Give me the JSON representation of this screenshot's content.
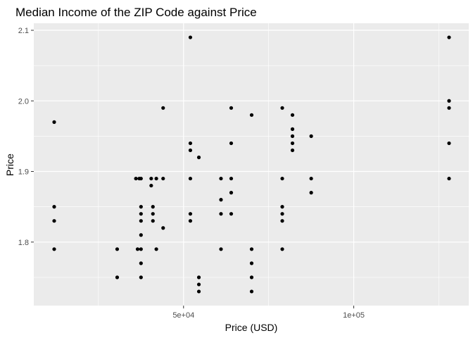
{
  "chart_data": {
    "type": "scatter",
    "title": "Median Income of the ZIP Code against Price",
    "xlabel": "Price (USD)",
    "ylabel": "Price",
    "xlim": [
      12000,
      128000
    ],
    "ylim": [
      1.71,
      2.11
    ],
    "x_ticks": [
      50000,
      100000
    ],
    "x_tick_labels": [
      "5e+04",
      "1e+05"
    ],
    "y_ticks": [
      1.8,
      1.9,
      2.0,
      2.1
    ],
    "y_tick_labels": [
      "1.8",
      "1.9",
      "2.0",
      "2.1"
    ],
    "grid": true,
    "background": "#ebebeb",
    "grid_color": "#ffffff",
    "point_color": "#000000",
    "points": [
      {
        "x": 12000,
        "y": 1.97
      },
      {
        "x": 12000,
        "y": 1.85
      },
      {
        "x": 12000,
        "y": 1.83
      },
      {
        "x": 12000,
        "y": 1.79
      },
      {
        "x": 30500,
        "y": 1.79
      },
      {
        "x": 30500,
        "y": 1.75
      },
      {
        "x": 36000,
        "y": 1.89
      },
      {
        "x": 37000,
        "y": 1.89
      },
      {
        "x": 37500,
        "y": 1.89
      },
      {
        "x": 37500,
        "y": 1.85
      },
      {
        "x": 37500,
        "y": 1.84
      },
      {
        "x": 37500,
        "y": 1.83
      },
      {
        "x": 37500,
        "y": 1.81
      },
      {
        "x": 36500,
        "y": 1.79
      },
      {
        "x": 37500,
        "y": 1.79
      },
      {
        "x": 37500,
        "y": 1.77
      },
      {
        "x": 37500,
        "y": 1.75
      },
      {
        "x": 40500,
        "y": 1.89
      },
      {
        "x": 40500,
        "y": 1.88
      },
      {
        "x": 41000,
        "y": 1.85
      },
      {
        "x": 41000,
        "y": 1.84
      },
      {
        "x": 41000,
        "y": 1.83
      },
      {
        "x": 42000,
        "y": 1.89
      },
      {
        "x": 42000,
        "y": 1.79
      },
      {
        "x": 44000,
        "y": 1.99
      },
      {
        "x": 44000,
        "y": 1.89
      },
      {
        "x": 44000,
        "y": 1.82
      },
      {
        "x": 52000,
        "y": 2.09
      },
      {
        "x": 52000,
        "y": 1.94
      },
      {
        "x": 52000,
        "y": 1.93
      },
      {
        "x": 52000,
        "y": 1.89
      },
      {
        "x": 52000,
        "y": 1.84
      },
      {
        "x": 52000,
        "y": 1.83
      },
      {
        "x": 54500,
        "y": 1.92
      },
      {
        "x": 54500,
        "y": 1.75
      },
      {
        "x": 54500,
        "y": 1.74
      },
      {
        "x": 54500,
        "y": 1.73
      },
      {
        "x": 61000,
        "y": 1.89
      },
      {
        "x": 61000,
        "y": 1.86
      },
      {
        "x": 61000,
        "y": 1.84
      },
      {
        "x": 61000,
        "y": 1.79
      },
      {
        "x": 64000,
        "y": 1.99
      },
      {
        "x": 64000,
        "y": 1.94
      },
      {
        "x": 64000,
        "y": 1.89
      },
      {
        "x": 64000,
        "y": 1.87
      },
      {
        "x": 64000,
        "y": 1.84
      },
      {
        "x": 70000,
        "y": 1.98
      },
      {
        "x": 70000,
        "y": 1.79
      },
      {
        "x": 70000,
        "y": 1.77
      },
      {
        "x": 70000,
        "y": 1.75
      },
      {
        "x": 70000,
        "y": 1.73
      },
      {
        "x": 79000,
        "y": 1.99
      },
      {
        "x": 79000,
        "y": 1.89
      },
      {
        "x": 79000,
        "y": 1.85
      },
      {
        "x": 79000,
        "y": 1.84
      },
      {
        "x": 79000,
        "y": 1.83
      },
      {
        "x": 79000,
        "y": 1.79
      },
      {
        "x": 82000,
        "y": 1.98
      },
      {
        "x": 82000,
        "y": 1.96
      },
      {
        "x": 82000,
        "y": 1.95
      },
      {
        "x": 82000,
        "y": 1.94
      },
      {
        "x": 82000,
        "y": 1.93
      },
      {
        "x": 87500,
        "y": 1.95
      },
      {
        "x": 87500,
        "y": 1.89
      },
      {
        "x": 87500,
        "y": 1.87
      },
      {
        "x": 128000,
        "y": 2.09
      },
      {
        "x": 128000,
        "y": 2.0
      },
      {
        "x": 128000,
        "y": 1.99
      },
      {
        "x": 128000,
        "y": 1.94
      },
      {
        "x": 128000,
        "y": 1.89
      }
    ]
  }
}
